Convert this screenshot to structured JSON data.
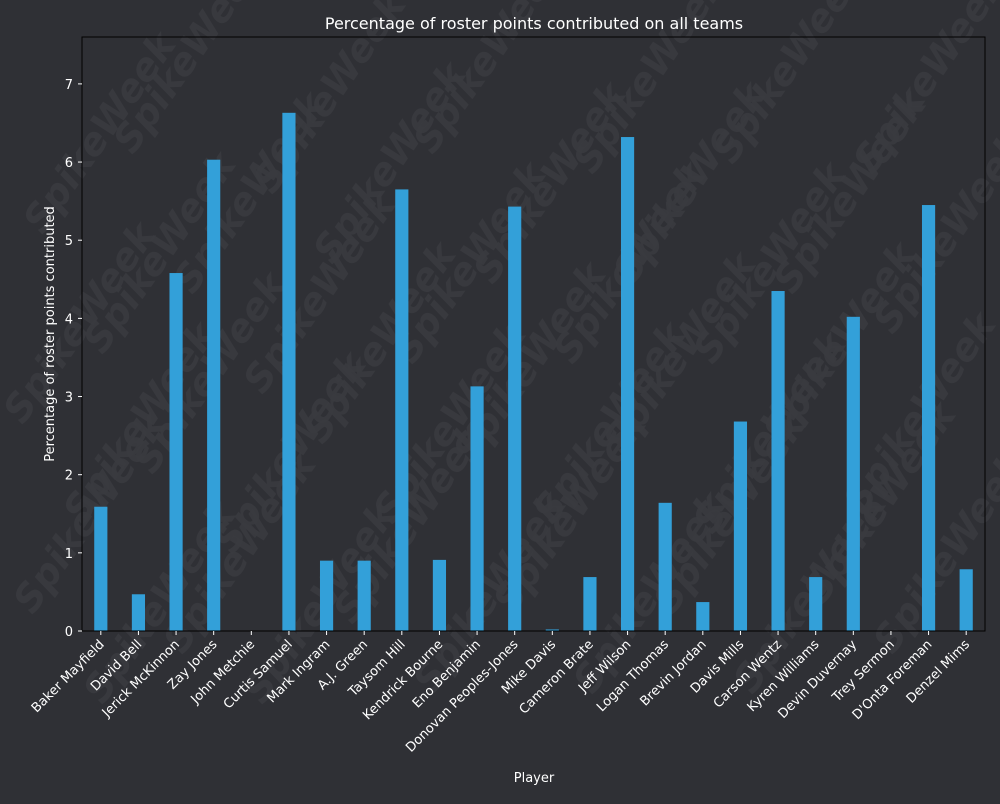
{
  "colors": {
    "background": "#2f3035",
    "plot_background": "#2f3035",
    "bar": "#33a0d9",
    "axis": "#000000",
    "text": "#ffffff",
    "watermark": "#3a3b40"
  },
  "watermark": {
    "text": "SpikeWeek"
  },
  "chart_data": {
    "type": "bar",
    "title": "Percentage of roster points contributed on all teams",
    "xlabel": "Player",
    "ylabel": "Percentage of roster points contributed",
    "ylim": [
      0,
      7.6
    ],
    "yticks": [
      0,
      1,
      2,
      3,
      4,
      5,
      6,
      7
    ],
    "grid": false,
    "categories": [
      "Baker Mayfield",
      "David Bell",
      "Jerick McKinnon",
      "Zay Jones",
      "John Metchie",
      "Curtis Samuel",
      "Mark Ingram",
      "A.J. Green",
      "Taysom Hill",
      "Kendrick Bourne",
      "Eno Benjamin",
      "Donovan Peoples-Jones",
      "Mike Davis",
      "Cameron Brate",
      "Jeff Wilson",
      "Logan Thomas",
      "Brevin Jordan",
      "Davis Mills",
      "Carson Wentz",
      "Kyren Williams",
      "Devin Duvernay",
      "Trey Sermon",
      "D'Onta Foreman",
      "Denzel Mims"
    ],
    "values": [
      1.59,
      0.47,
      4.58,
      6.03,
      0.0,
      6.63,
      0.9,
      0.9,
      5.65,
      0.91,
      3.13,
      5.43,
      0.02,
      0.69,
      6.32,
      1.64,
      0.37,
      2.68,
      4.35,
      0.69,
      4.02,
      0.0,
      5.45,
      0.79
    ]
  }
}
